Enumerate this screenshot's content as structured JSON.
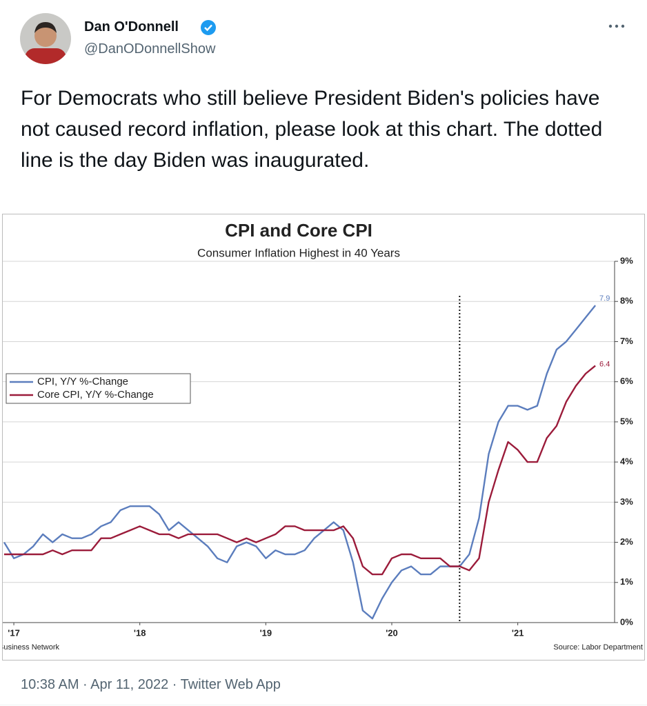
{
  "tweet": {
    "name": "Dan O'Donnell",
    "handle": "@DanODonnellShow",
    "text": "For Democrats who still believe President Biden's policies have not caused record inflation, please look at this chart. The dotted line is the day Biden was inaugurated.",
    "footer": "10:38 AM · Apr 11, 2022 · Twitter Web App"
  },
  "chart_data": {
    "type": "line",
    "title": "CPI and Core CPI",
    "subtitle": "Consumer Inflation Highest in 40 Years",
    "left_note": "Business Network",
    "source": "Source: Labor Department",
    "x": [
      0,
      1,
      2,
      3,
      4,
      5,
      6,
      7,
      8,
      9,
      10,
      11,
      12,
      13,
      14,
      15,
      16,
      17,
      18,
      19,
      20,
      21,
      22,
      23,
      24,
      25,
      26,
      27,
      28,
      29,
      30,
      31,
      32,
      33,
      34,
      35,
      36,
      37,
      38,
      39,
      40,
      41,
      42,
      43,
      44,
      45,
      46,
      47,
      48,
      49,
      50,
      51,
      52,
      53,
      54,
      55,
      56,
      57,
      58,
      59,
      60,
      61
    ],
    "series": [
      {
        "name": "CPI, Y/Y %-Change",
        "color": "#5b7dbd",
        "values": [
          2.0,
          1.6,
          1.7,
          1.9,
          2.2,
          2.0,
          2.2,
          2.1,
          2.1,
          2.2,
          2.4,
          2.5,
          2.8,
          2.9,
          2.9,
          2.9,
          2.7,
          2.3,
          2.5,
          2.3,
          2.1,
          1.9,
          1.6,
          1.5,
          1.9,
          2.0,
          1.9,
          1.6,
          1.8,
          1.7,
          1.7,
          1.8,
          2.1,
          2.3,
          2.5,
          2.3,
          1.5,
          0.3,
          0.1,
          0.6,
          1.0,
          1.3,
          1.4,
          1.2,
          1.2,
          1.4,
          1.4,
          1.4,
          1.7,
          2.6,
          4.2,
          5.0,
          5.4,
          5.4,
          5.3,
          5.4,
          6.2,
          6.8,
          7.0,
          7.3,
          7.6,
          7.9
        ]
      },
      {
        "name": "Core CPI, Y/Y %-Change",
        "color": "#9b1b3a",
        "values": [
          1.7,
          1.7,
          1.7,
          1.7,
          1.7,
          1.8,
          1.7,
          1.8,
          1.8,
          1.8,
          2.1,
          2.1,
          2.2,
          2.3,
          2.4,
          2.3,
          2.2,
          2.2,
          2.1,
          2.2,
          2.2,
          2.2,
          2.2,
          2.1,
          2.0,
          2.1,
          2.0,
          2.1,
          2.2,
          2.4,
          2.4,
          2.3,
          2.3,
          2.3,
          2.3,
          2.4,
          2.1,
          1.4,
          1.2,
          1.2,
          1.6,
          1.7,
          1.7,
          1.6,
          1.6,
          1.6,
          1.4,
          1.4,
          1.3,
          1.6,
          3.0,
          3.8,
          4.5,
          4.3,
          4.0,
          4.0,
          4.6,
          4.9,
          5.5,
          5.9,
          6.2,
          6.4
        ]
      }
    ],
    "xlim": [
      0,
      64
    ],
    "xticks": [
      {
        "value": 1,
        "label": "'17"
      },
      {
        "value": 14,
        "label": "'18"
      },
      {
        "value": 27,
        "label": "'19"
      },
      {
        "value": 40,
        "label": "'20"
      },
      {
        "value": 53,
        "label": "'21"
      }
    ],
    "ylim": [
      0,
      9
    ],
    "yticks": [
      {
        "value": 0,
        "label": "0%"
      },
      {
        "value": 1,
        "label": "1%"
      },
      {
        "value": 2,
        "label": "2%"
      },
      {
        "value": 3,
        "label": "3%"
      },
      {
        "value": 4,
        "label": "4%"
      },
      {
        "value": 5,
        "label": "5%"
      },
      {
        "value": 6,
        "label": "6%"
      },
      {
        "value": 7,
        "label": "7%"
      },
      {
        "value": 8,
        "label": "8%"
      },
      {
        "value": 9,
        "label": "9%"
      }
    ],
    "vline_x": 47,
    "grid": true,
    "legend": "left"
  }
}
